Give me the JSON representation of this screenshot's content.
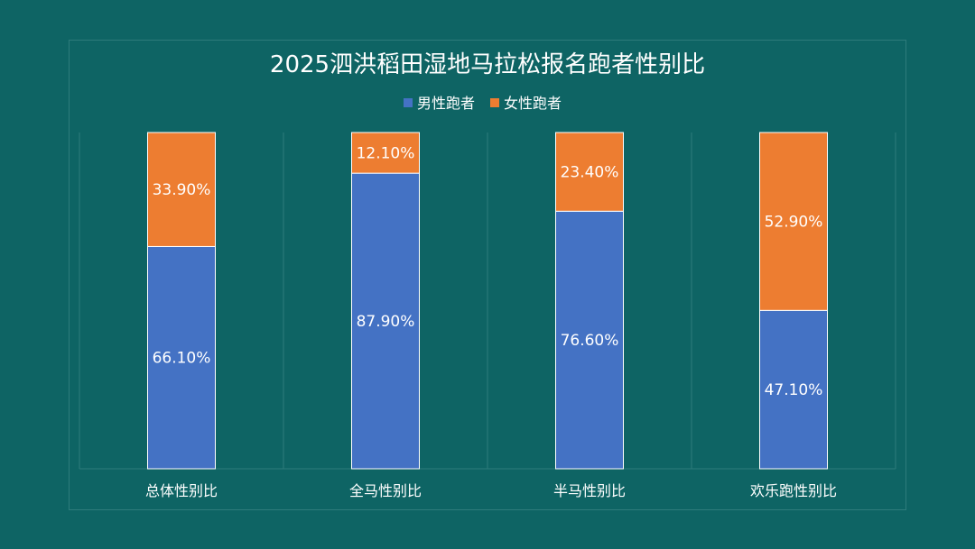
{
  "chart_data": {
    "type": "bar",
    "stacked": true,
    "percent_stacked": true,
    "title": "2025泗洪稻田湿地马拉松报名跑者性别比",
    "categories": [
      "总体性别比",
      "全马性别比",
      "半马性别比",
      "欢乐跑性别比"
    ],
    "series": [
      {
        "name": "男性跑者",
        "values": [
          66.1,
          87.9,
          76.6,
          47.1
        ],
        "labels": [
          "66.10%",
          "87.90%",
          "76.60%",
          "47.10%"
        ],
        "color": "#4472c4"
      },
      {
        "name": "女性跑者",
        "values": [
          33.9,
          12.1,
          23.4,
          52.9
        ],
        "labels": [
          "33.90%",
          "12.10%",
          "23.40%",
          "52.90%"
        ],
        "color": "#ed7d31"
      }
    ],
    "ylim": [
      0,
      100
    ],
    "legend": "top",
    "grid": "vertical"
  },
  "colors": {
    "background": "#0e6464",
    "text": "#ffffff",
    "grid": "#2e7b7b",
    "bar_border": "#ffffff"
  }
}
